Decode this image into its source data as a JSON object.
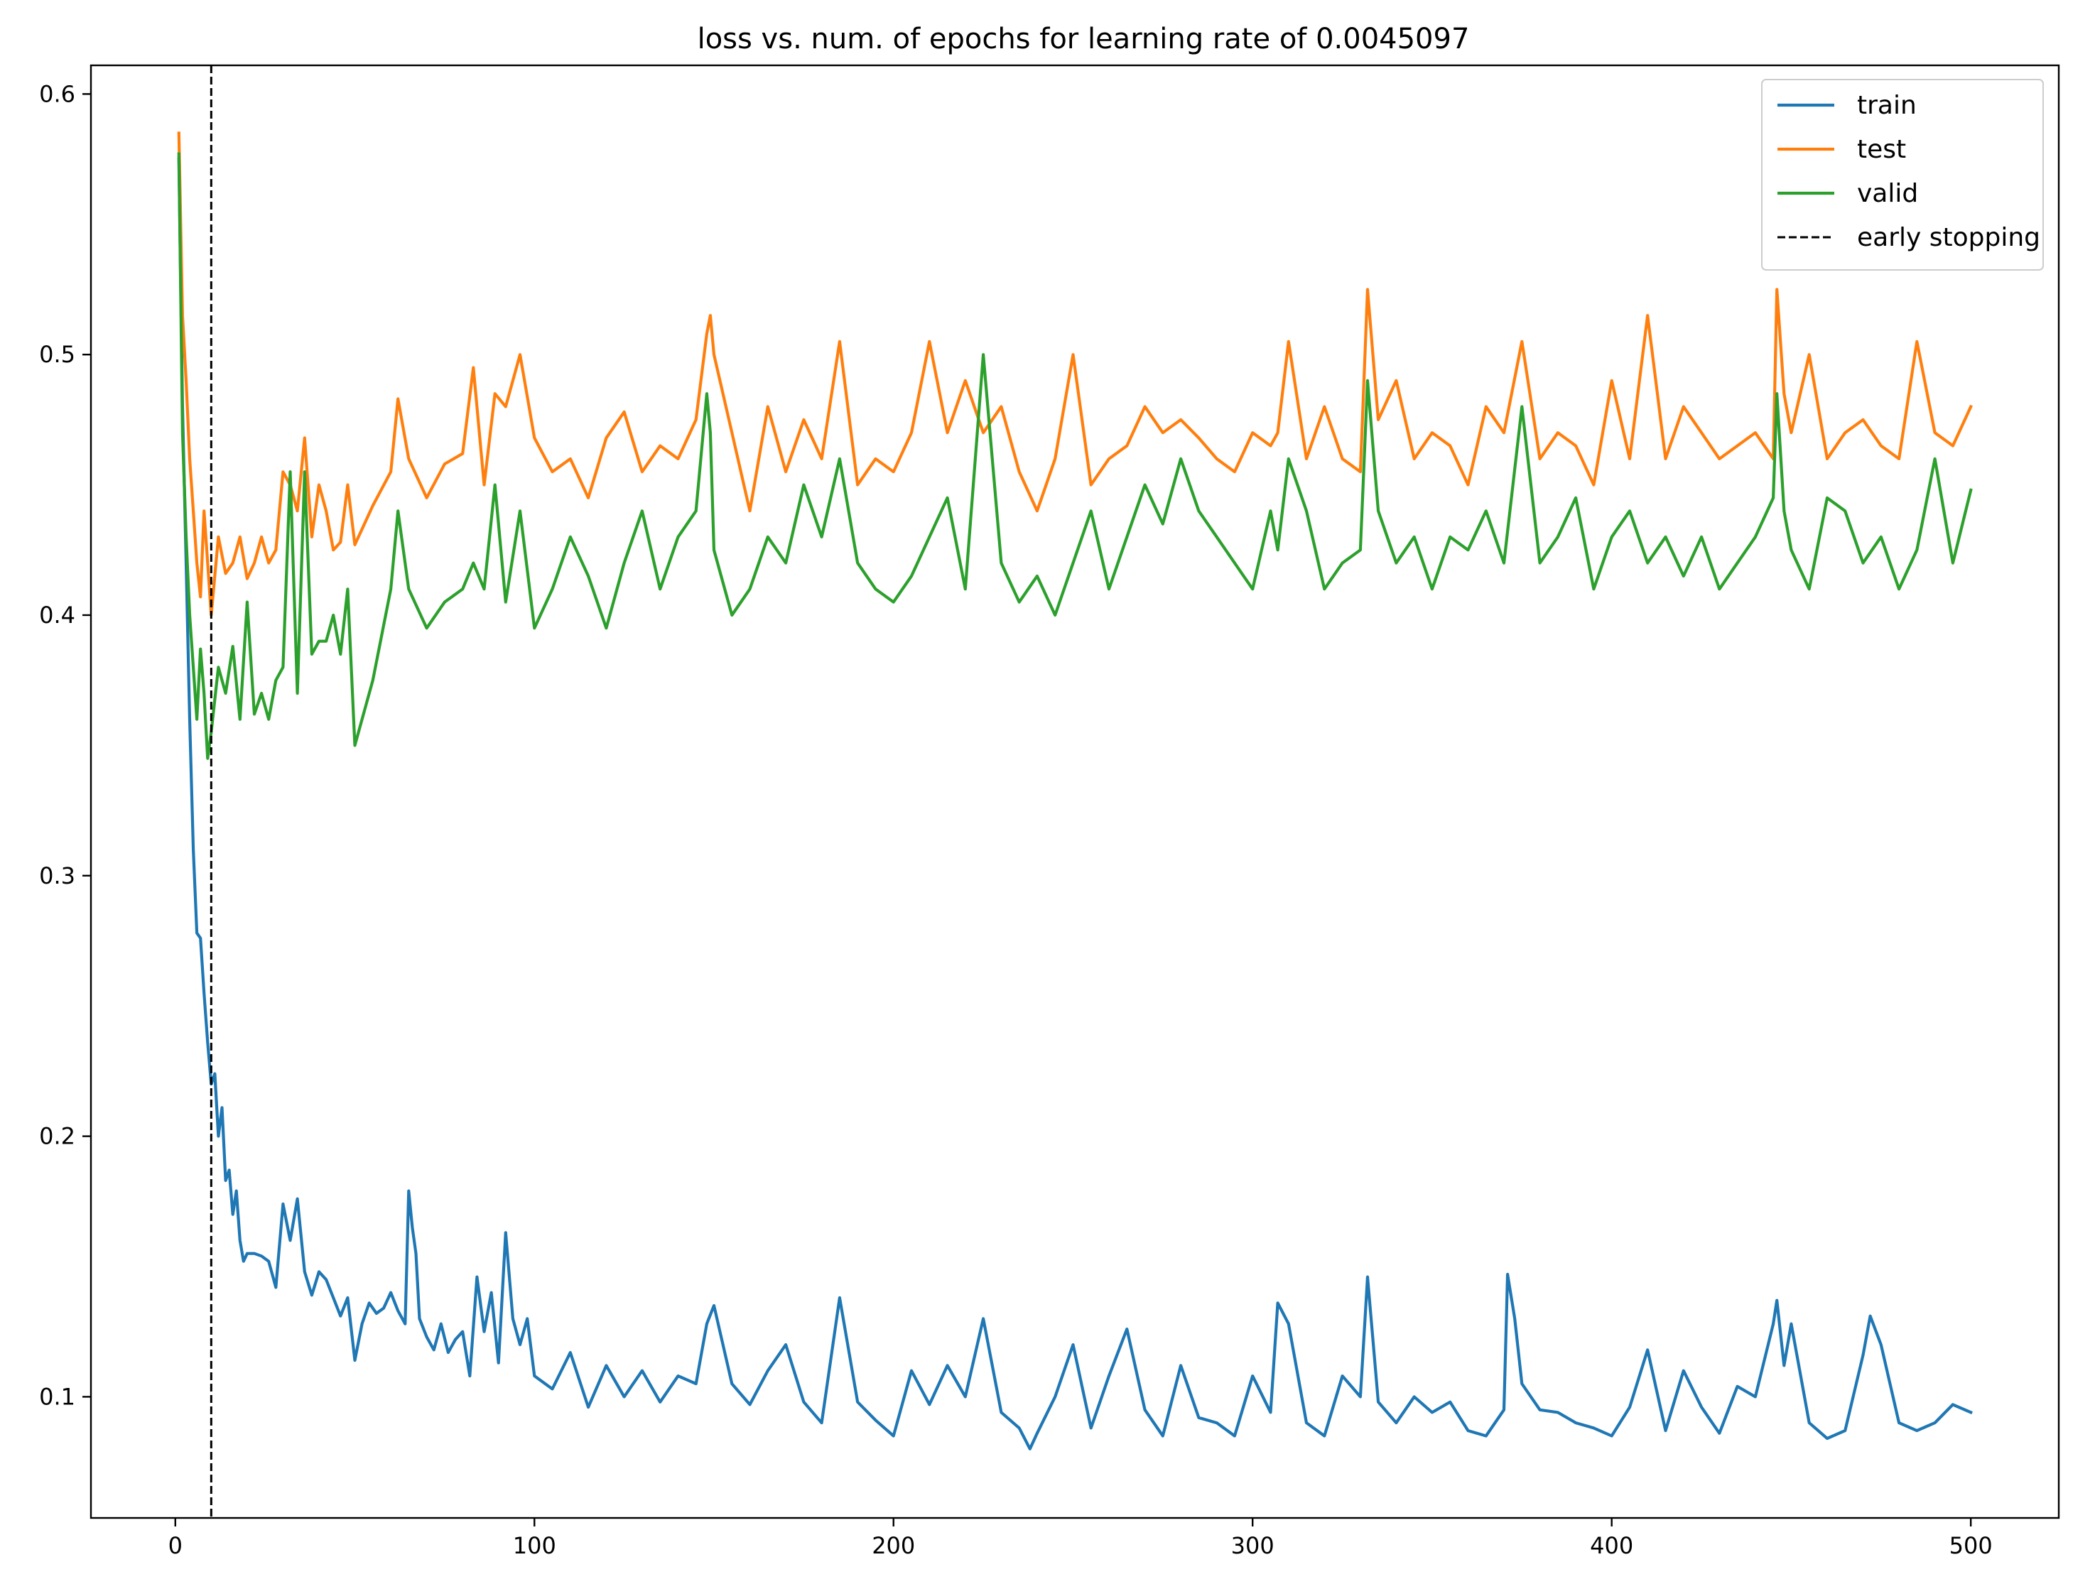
{
  "chart_data": {
    "type": "line",
    "title": "loss vs. num. of epochs for learning rate of 0.0045097",
    "xlabel": "",
    "ylabel": "",
    "xlim": [
      -23.5,
      524.5
    ],
    "ylim": [
      0.0535,
      0.611
    ],
    "xticks": [
      0,
      100,
      200,
      300,
      400,
      500
    ],
    "yticks": [
      0.1,
      0.2,
      0.3,
      0.4,
      0.5,
      0.6
    ],
    "ytick_labels": [
      "0.1",
      "0.2",
      "0.3",
      "0.4",
      "0.5",
      "0.6"
    ],
    "grid": false,
    "legend_position": "top-right",
    "early_stopping_epoch": 10,
    "series": [
      {
        "name": "train",
        "color": "#1f77b4",
        "x": [
          1,
          2,
          3,
          4,
          5,
          6,
          7,
          8,
          9,
          10,
          11,
          12,
          13,
          14,
          15,
          16,
          17,
          18,
          19,
          20,
          22,
          24,
          26,
          28,
          30,
          32,
          34,
          36,
          38,
          40,
          42,
          44,
          46,
          48,
          50,
          52,
          54,
          56,
          58,
          60,
          62,
          64,
          65,
          66,
          67,
          68,
          70,
          72,
          74,
          76,
          78,
          80,
          82,
          84,
          86,
          88,
          90,
          92,
          94,
          96,
          98,
          100,
          105,
          110,
          115,
          120,
          125,
          130,
          135,
          140,
          145,
          148,
          150,
          155,
          160,
          165,
          170,
          175,
          180,
          185,
          190,
          195,
          200,
          205,
          210,
          215,
          220,
          225,
          230,
          235,
          238,
          240,
          245,
          250,
          255,
          260,
          265,
          270,
          275,
          280,
          285,
          290,
          295,
          300,
          305,
          307,
          310,
          315,
          320,
          325,
          330,
          332,
          335,
          340,
          345,
          350,
          355,
          360,
          365,
          370,
          371,
          373,
          375,
          380,
          385,
          390,
          395,
          400,
          405,
          410,
          415,
          420,
          425,
          430,
          435,
          440,
          445,
          446,
          448,
          450,
          455,
          460,
          465,
          470,
          472,
          475,
          480,
          485,
          490,
          495,
          500
        ],
        "y": [
          0.575,
          0.48,
          0.42,
          0.36,
          0.31,
          0.278,
          0.276,
          0.255,
          0.236,
          0.22,
          0.224,
          0.2,
          0.211,
          0.183,
          0.187,
          0.17,
          0.179,
          0.16,
          0.152,
          0.155,
          0.155,
          0.154,
          0.152,
          0.142,
          0.174,
          0.16,
          0.176,
          0.148,
          0.139,
          0.148,
          0.145,
          0.138,
          0.131,
          0.138,
          0.114,
          0.128,
          0.136,
          0.132,
          0.134,
          0.14,
          0.133,
          0.128,
          0.179,
          0.165,
          0.155,
          0.13,
          0.123,
          0.118,
          0.128,
          0.117,
          0.122,
          0.125,
          0.108,
          0.146,
          0.125,
          0.14,
          0.113,
          0.163,
          0.13,
          0.12,
          0.13,
          0.108,
          0.103,
          0.117,
          0.096,
          0.112,
          0.1,
          0.11,
          0.098,
          0.108,
          0.105,
          0.128,
          0.135,
          0.105,
          0.097,
          0.11,
          0.12,
          0.098,
          0.09,
          0.138,
          0.098,
          0.091,
          0.085,
          0.11,
          0.097,
          0.112,
          0.1,
          0.13,
          0.094,
          0.088,
          0.08,
          0.086,
          0.1,
          0.12,
          0.088,
          0.108,
          0.126,
          0.095,
          0.085,
          0.112,
          0.092,
          0.09,
          0.085,
          0.108,
          0.094,
          0.136,
          0.128,
          0.09,
          0.085,
          0.108,
          0.1,
          0.146,
          0.098,
          0.09,
          0.1,
          0.094,
          0.098,
          0.087,
          0.085,
          0.095,
          0.147,
          0.13,
          0.105,
          0.095,
          0.094,
          0.09,
          0.088,
          0.085,
          0.096,
          0.118,
          0.087,
          0.11,
          0.096,
          0.086,
          0.104,
          0.1,
          0.128,
          0.137,
          0.112,
          0.128,
          0.09,
          0.084,
          0.087,
          0.116,
          0.131,
          0.12,
          0.09,
          0.087,
          0.09,
          0.097,
          0.094
        ]
      },
      {
        "name": "test",
        "color": "#ff7f0e",
        "x": [
          1,
          2,
          3,
          4,
          5,
          6,
          7,
          8,
          9,
          10,
          12,
          14,
          16,
          18,
          20,
          22,
          24,
          26,
          28,
          30,
          32,
          34,
          36,
          38,
          40,
          42,
          44,
          46,
          48,
          50,
          55,
          60,
          62,
          65,
          70,
          75,
          80,
          83,
          86,
          89,
          92,
          96,
          100,
          105,
          110,
          115,
          120,
          125,
          130,
          135,
          140,
          145,
          148,
          149,
          150,
          155,
          160,
          165,
          170,
          175,
          180,
          185,
          190,
          195,
          200,
          205,
          210,
          215,
          220,
          225,
          230,
          235,
          240,
          245,
          250,
          255,
          260,
          265,
          270,
          275,
          280,
          285,
          290,
          295,
          300,
          305,
          307,
          310,
          315,
          320,
          325,
          330,
          332,
          335,
          340,
          345,
          350,
          355,
          360,
          365,
          370,
          375,
          380,
          385,
          390,
          395,
          400,
          405,
          410,
          415,
          420,
          425,
          430,
          435,
          440,
          445,
          446,
          448,
          450,
          455,
          460,
          465,
          470,
          475,
          480,
          485,
          490,
          495,
          500
        ],
        "y": [
          0.585,
          0.515,
          0.49,
          0.46,
          0.44,
          0.42,
          0.407,
          0.44,
          0.42,
          0.4,
          0.43,
          0.416,
          0.42,
          0.43,
          0.414,
          0.42,
          0.43,
          0.42,
          0.425,
          0.455,
          0.45,
          0.44,
          0.468,
          0.43,
          0.45,
          0.44,
          0.425,
          0.428,
          0.45,
          0.427,
          0.442,
          0.455,
          0.483,
          0.46,
          0.445,
          0.458,
          0.462,
          0.495,
          0.45,
          0.485,
          0.48,
          0.5,
          0.468,
          0.455,
          0.46,
          0.445,
          0.468,
          0.478,
          0.455,
          0.465,
          0.46,
          0.475,
          0.508,
          0.515,
          0.5,
          0.47,
          0.44,
          0.48,
          0.455,
          0.475,
          0.46,
          0.505,
          0.45,
          0.46,
          0.455,
          0.47,
          0.505,
          0.47,
          0.49,
          0.47,
          0.48,
          0.455,
          0.44,
          0.46,
          0.5,
          0.45,
          0.46,
          0.465,
          0.48,
          0.47,
          0.475,
          0.468,
          0.46,
          0.455,
          0.47,
          0.465,
          0.47,
          0.505,
          0.46,
          0.48,
          0.46,
          0.455,
          0.525,
          0.475,
          0.49,
          0.46,
          0.47,
          0.465,
          0.45,
          0.48,
          0.47,
          0.505,
          0.46,
          0.47,
          0.465,
          0.45,
          0.49,
          0.46,
          0.515,
          0.46,
          0.48,
          0.47,
          0.46,
          0.465,
          0.47,
          0.46,
          0.525,
          0.485,
          0.47,
          0.5,
          0.46,
          0.47,
          0.475,
          0.465,
          0.46,
          0.505,
          0.47,
          0.465,
          0.48
        ]
      },
      {
        "name": "valid",
        "color": "#2ca02c",
        "x": [
          1,
          2,
          3,
          4,
          5,
          6,
          7,
          8,
          9,
          10,
          12,
          14,
          16,
          18,
          20,
          22,
          24,
          26,
          28,
          30,
          32,
          34,
          36,
          38,
          40,
          42,
          44,
          46,
          48,
          50,
          55,
          60,
          62,
          65,
          70,
          75,
          80,
          83,
          86,
          89,
          92,
          96,
          100,
          105,
          110,
          115,
          120,
          125,
          130,
          135,
          140,
          145,
          148,
          149,
          150,
          155,
          160,
          165,
          170,
          175,
          180,
          185,
          190,
          195,
          200,
          205,
          210,
          215,
          220,
          225,
          230,
          235,
          240,
          245,
          250,
          255,
          260,
          265,
          270,
          275,
          280,
          285,
          290,
          295,
          300,
          305,
          307,
          310,
          315,
          320,
          325,
          330,
          332,
          335,
          340,
          345,
          350,
          355,
          360,
          365,
          370,
          375,
          380,
          385,
          390,
          395,
          400,
          405,
          410,
          415,
          420,
          425,
          430,
          435,
          440,
          445,
          446,
          448,
          450,
          455,
          460,
          465,
          470,
          475,
          480,
          485,
          490,
          495,
          500
        ],
        "y": [
          0.577,
          0.47,
          0.43,
          0.4,
          0.38,
          0.36,
          0.387,
          0.37,
          0.345,
          0.355,
          0.38,
          0.37,
          0.388,
          0.36,
          0.405,
          0.362,
          0.37,
          0.36,
          0.375,
          0.38,
          0.455,
          0.37,
          0.455,
          0.385,
          0.39,
          0.39,
          0.4,
          0.385,
          0.41,
          0.35,
          0.375,
          0.41,
          0.44,
          0.41,
          0.395,
          0.405,
          0.41,
          0.42,
          0.41,
          0.45,
          0.405,
          0.44,
          0.395,
          0.41,
          0.43,
          0.415,
          0.395,
          0.42,
          0.44,
          0.41,
          0.43,
          0.44,
          0.485,
          0.47,
          0.425,
          0.4,
          0.41,
          0.43,
          0.42,
          0.45,
          0.43,
          0.46,
          0.42,
          0.41,
          0.405,
          0.415,
          0.43,
          0.445,
          0.41,
          0.5,
          0.42,
          0.405,
          0.415,
          0.4,
          0.42,
          0.44,
          0.41,
          0.43,
          0.45,
          0.435,
          0.46,
          0.44,
          0.43,
          0.42,
          0.41,
          0.44,
          0.425,
          0.46,
          0.44,
          0.41,
          0.42,
          0.425,
          0.49,
          0.44,
          0.42,
          0.43,
          0.41,
          0.43,
          0.425,
          0.44,
          0.42,
          0.48,
          0.42,
          0.43,
          0.445,
          0.41,
          0.43,
          0.44,
          0.42,
          0.43,
          0.415,
          0.43,
          0.41,
          0.42,
          0.43,
          0.445,
          0.485,
          0.44,
          0.425,
          0.41,
          0.445,
          0.44,
          0.42,
          0.43,
          0.41,
          0.425,
          0.46,
          0.42,
          0.448
        ]
      }
    ],
    "vlines": [
      {
        "name": "early stopping",
        "x": 10,
        "color": "#000000",
        "style": "dashed"
      }
    ]
  }
}
